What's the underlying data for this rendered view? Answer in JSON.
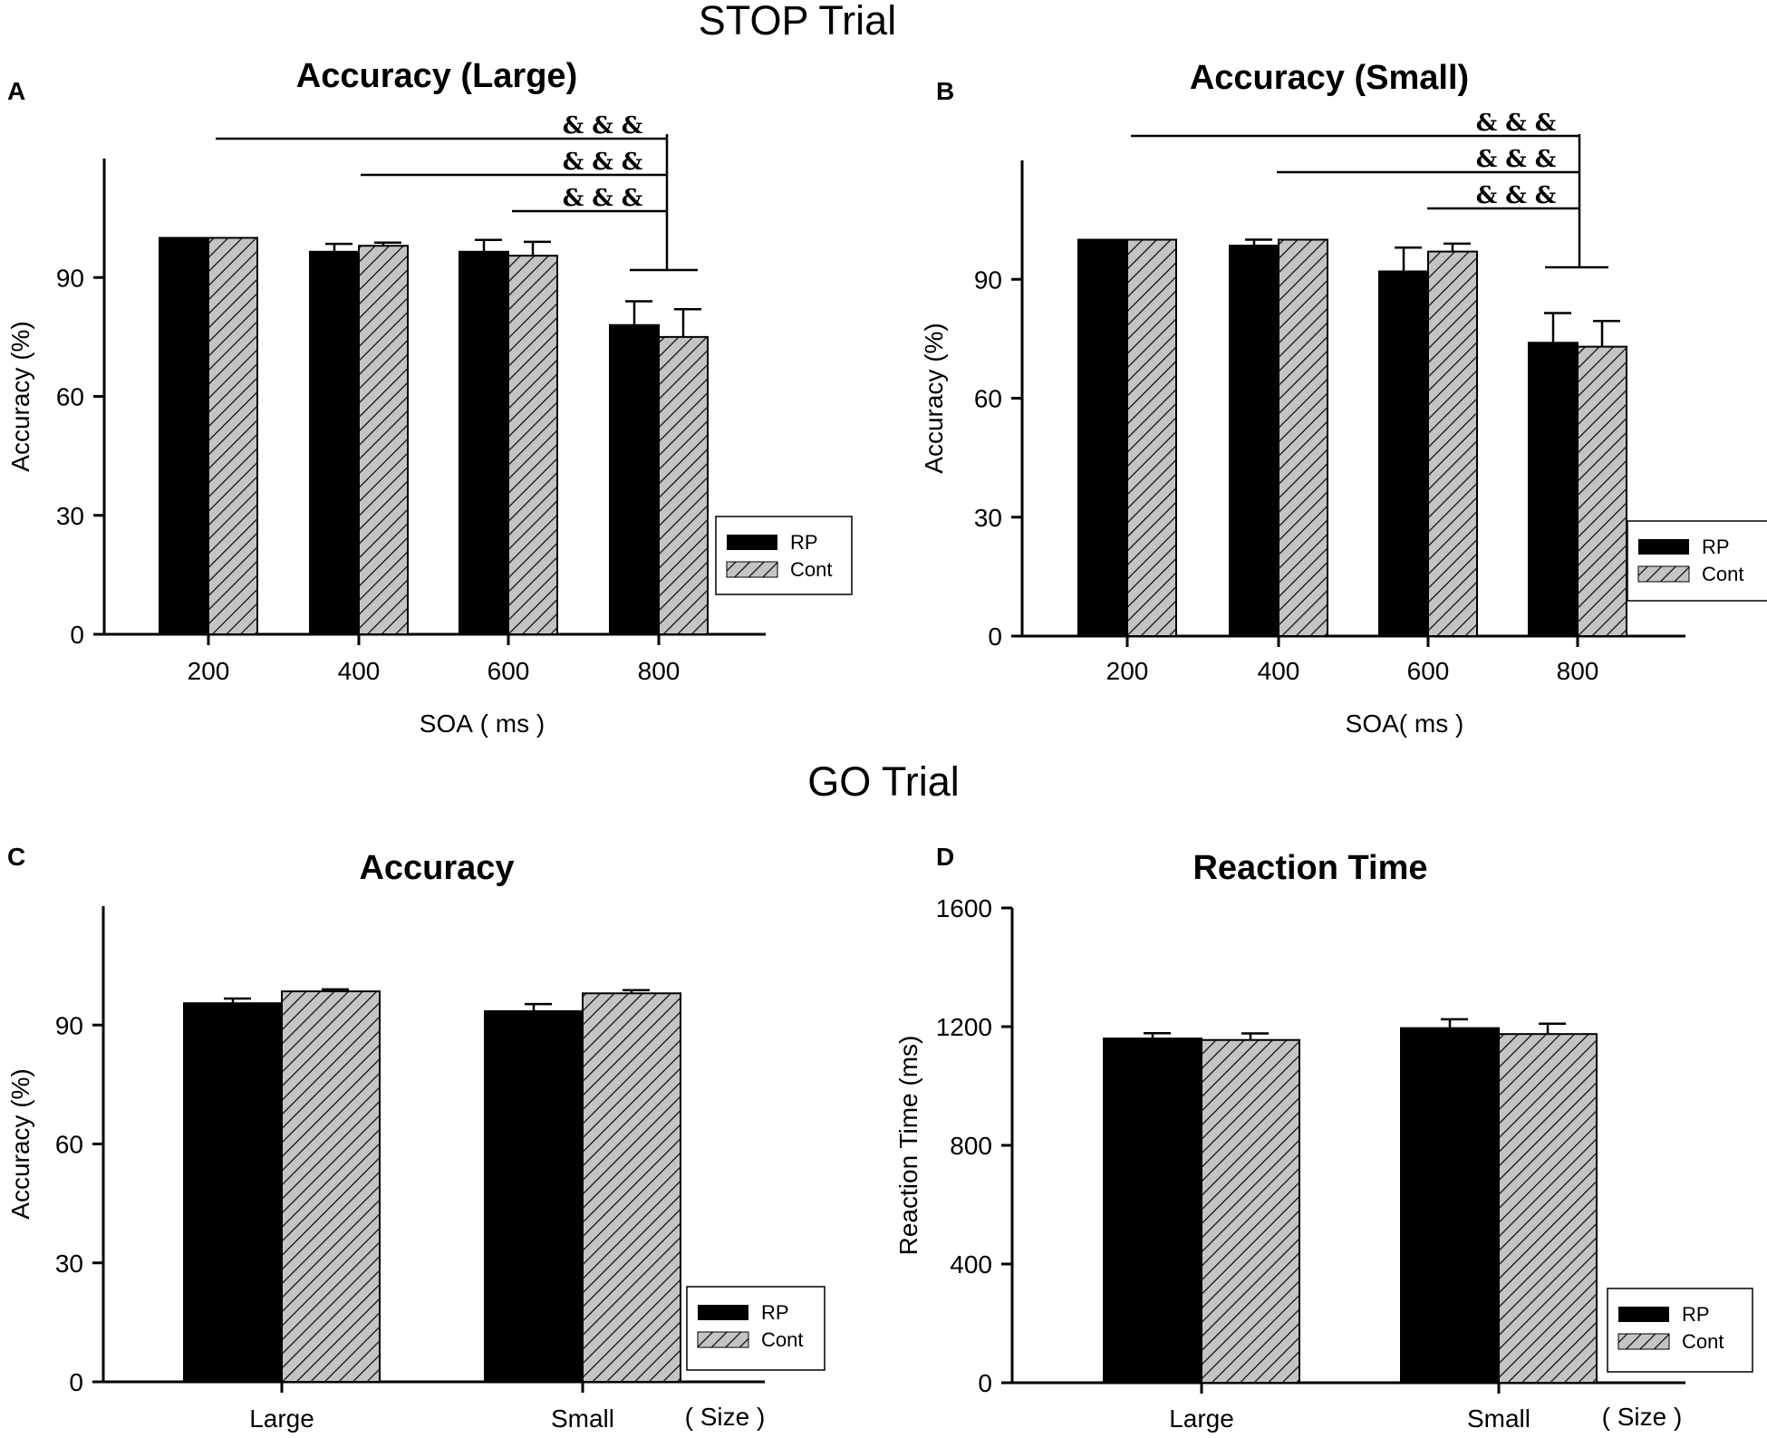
{
  "figure": {
    "stop_section_title": "STOP Trial",
    "go_section_title": "GO Trial",
    "legend": {
      "rp": "RP",
      "cont": "Cont"
    },
    "significance_marker": "& & &"
  },
  "chart_data": [
    {
      "id": "A",
      "panel_letter": "A",
      "type": "bar",
      "title": "Accuracy (Large)",
      "xlabel": "SOA ( ms )",
      "xlabel_suffix": "",
      "ylabel": "Accuracy (%)",
      "categories": [
        "200",
        "400",
        "600",
        "800"
      ],
      "ylim": [
        0,
        120
      ],
      "yticks": [
        0,
        30,
        60,
        90
      ],
      "series": [
        {
          "name": "RP",
          "values": [
            100,
            96.5,
            96.5,
            78
          ],
          "errors": [
            0,
            2,
            3,
            6
          ]
        },
        {
          "name": "Cont",
          "values": [
            100,
            98,
            95.5,
            75
          ],
          "errors": [
            0,
            0.8,
            3.5,
            7
          ]
        }
      ],
      "significance": {
        "marker": "& & &",
        "comparisons": [
          [
            "200",
            "800"
          ],
          [
            "400",
            "800"
          ],
          [
            "600",
            "800"
          ]
        ]
      }
    },
    {
      "id": "B",
      "panel_letter": "B",
      "type": "bar",
      "title": "Accuracy (Small)",
      "xlabel": "SOA( ms )",
      "xlabel_suffix": "",
      "ylabel": "Accuracy (%)",
      "categories": [
        "200",
        "400",
        "600",
        "800"
      ],
      "ylim": [
        0,
        120
      ],
      "yticks": [
        0,
        30,
        60,
        90
      ],
      "series": [
        {
          "name": "RP",
          "values": [
            100,
            98.5,
            92,
            74
          ],
          "errors": [
            0,
            1.5,
            6,
            7.5
          ]
        },
        {
          "name": "Cont",
          "values": [
            100,
            100,
            97,
            73
          ],
          "errors": [
            0,
            0,
            2,
            6.5
          ]
        }
      ],
      "significance": {
        "marker": "& & &",
        "comparisons": [
          [
            "200",
            "800"
          ],
          [
            "400",
            "800"
          ],
          [
            "600",
            "800"
          ]
        ]
      }
    },
    {
      "id": "C",
      "panel_letter": "C",
      "type": "bar",
      "title": "Accuracy",
      "xlabel": "",
      "xlabel_suffix": "( Size )",
      "ylabel": "Accuracy (%)",
      "categories": [
        "Large",
        "Small"
      ],
      "ylim": [
        0,
        120
      ],
      "yticks": [
        0,
        30,
        60,
        90
      ],
      "series": [
        {
          "name": "RP",
          "values": [
            95.5,
            93.5
          ],
          "errors": [
            1.2,
            1.8
          ]
        },
        {
          "name": "Cont",
          "values": [
            98.5,
            98
          ],
          "errors": [
            0.5,
            0.8
          ]
        }
      ]
    },
    {
      "id": "D",
      "panel_letter": "D",
      "type": "bar",
      "title": "Reaction Time",
      "xlabel": "",
      "xlabel_suffix": "( Size )",
      "ylabel": "Reaction Time (ms)",
      "categories": [
        "Large",
        "Small"
      ],
      "ylim": [
        0,
        1600
      ],
      "yticks": [
        0,
        400,
        800,
        1200,
        1600
      ],
      "series": [
        {
          "name": "RP",
          "values": [
            1160,
            1195
          ],
          "errors": [
            18,
            30
          ]
        },
        {
          "name": "Cont",
          "values": [
            1155,
            1175
          ],
          "errors": [
            22,
            35
          ]
        }
      ]
    }
  ]
}
